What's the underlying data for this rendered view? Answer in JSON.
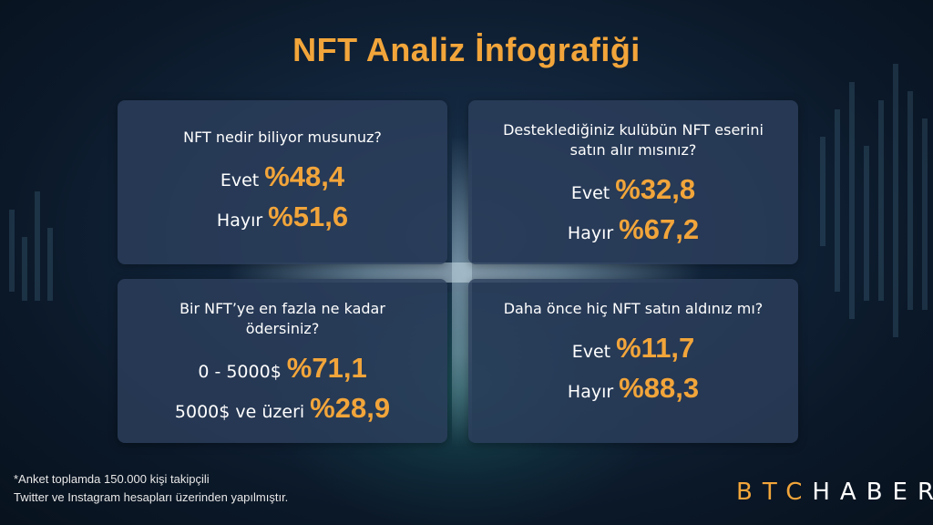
{
  "title": "NFT Analiz İnfografiği",
  "colors": {
    "accent": "#f2a53a",
    "card_bg": "#2c3e5c",
    "background": "#0b1828"
  },
  "cards": [
    {
      "question": "NFT nedir biliyor musunuz?",
      "answers": [
        {
          "label": "Evet",
          "value": "%48,4"
        },
        {
          "label": "Hayır",
          "value": "%51,6"
        }
      ]
    },
    {
      "question": "Desteklediğiniz kulübün NFT eserini satın alır mısınız?",
      "answers": [
        {
          "label": "Evet",
          "value": "%32,8"
        },
        {
          "label": "Hayır",
          "value": "%67,2"
        }
      ]
    },
    {
      "question": "Bir NFT’ye en fazla ne kadar ödersiniz?",
      "answers": [
        {
          "label": "0 - 5000$",
          "value": "%71,1"
        },
        {
          "label": "5000$ ve üzeri",
          "value": "%28,9"
        }
      ]
    },
    {
      "question": "Daha önce hiç NFT satın aldınız mı?",
      "answers": [
        {
          "label": "Evet",
          "value": "%11,7"
        },
        {
          "label": "Hayır",
          "value": "%88,3"
        }
      ]
    }
  ],
  "footnote": {
    "line1": "*Anket toplamda 150.000 kişi takipçili",
    "line2": "Twitter ve Instagram hesapları üzerinden yapılmıştır."
  },
  "logo": {
    "part1": "BTC",
    "part2": "HABER"
  }
}
